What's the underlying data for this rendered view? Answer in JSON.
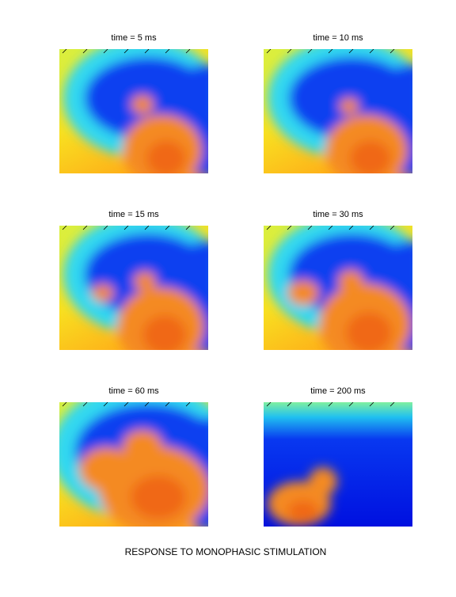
{
  "panels": [
    {
      "title": "time = 5 ms"
    },
    {
      "title": "time = 10 ms"
    },
    {
      "title": "time = 15 ms"
    },
    {
      "title": "time = 30 ms"
    },
    {
      "title": "time = 60 ms"
    },
    {
      "title": "time = 200 ms"
    }
  ],
  "caption": "RESPONSE TO MONOPHASIC STIMULATION"
}
